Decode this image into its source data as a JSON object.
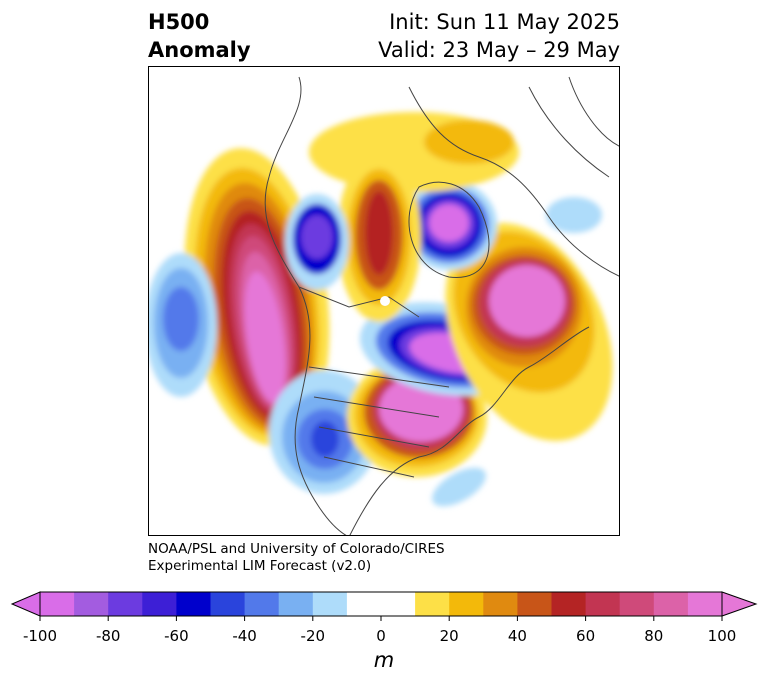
{
  "title": {
    "left_line1": "H500",
    "left_line2": "Anomaly",
    "right_line1": "Init: Sun 11 May 2025",
    "right_line2": "Valid: 23 May – 29 May"
  },
  "credits": {
    "line1": "NOAA/PSL and University of Colorado/CIRES",
    "line2": "Experimental LIM Forecast (v2.0)"
  },
  "colorbar": {
    "units": "m",
    "ticks": [
      "-100",
      "-80",
      "-60",
      "-40",
      "-20",
      "0",
      "20",
      "40",
      "60",
      "80",
      "100"
    ],
    "colors": [
      "#d96de8",
      "#a35ce0",
      "#6c3be0",
      "#3d1fd6",
      "#0000cc",
      "#2a44dc",
      "#5279ea",
      "#79b0f2",
      "#aedcfa",
      "#ffffff",
      "#ffffff",
      "#fde047",
      "#f3b90a",
      "#e08a10",
      "#c85518",
      "#b42424",
      "#c23552",
      "#cf4a7a",
      "#dc62a8",
      "#e577d7"
    ],
    "under_color": "#d96de8",
    "over_color": "#e577d7"
  }
}
